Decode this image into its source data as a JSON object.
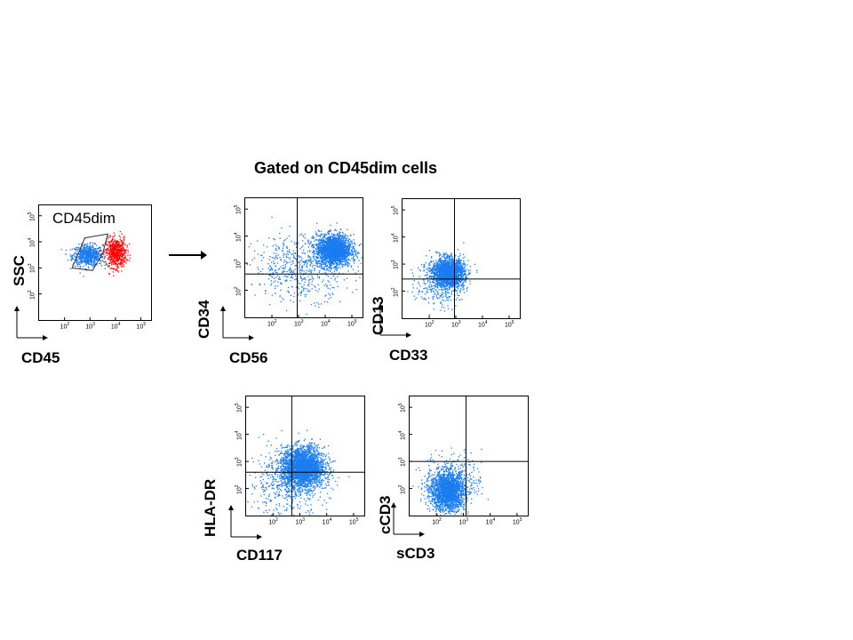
{
  "heading": "Gated on CD45dim cells",
  "colors": {
    "gated": "#1a7cf0",
    "other": "#ff0000",
    "lines": "#000000"
  },
  "chart_data": [
    {
      "type": "scatter",
      "id": "p1",
      "xlabel": "CD45",
      "ylabel": "SSC",
      "gate_label": "CD45dim",
      "xticks": [
        "10^2",
        "10^3",
        "10^4",
        "10^5"
      ],
      "yticks": [
        "10^2",
        "10^3",
        "10^4",
        "10^5"
      ],
      "xlim": [
        1,
        5.4
      ],
      "ylim": [
        1,
        5.4
      ],
      "log_scale": true,
      "clusters": [
        {
          "name": "CD45dim",
          "color": "blue",
          "x": 2.9,
          "y": 3.5,
          "sx": 0.3,
          "sy": 0.2,
          "n": 700
        },
        {
          "name": "",
          "color": "red",
          "x": 4.0,
          "y": 3.6,
          "sx": 0.2,
          "sy": 0.28,
          "n": 600
        }
      ],
      "gate_polygon": [
        [
          2.3,
          3.0
        ],
        [
          2.8,
          4.15
        ],
        [
          3.7,
          4.3
        ],
        [
          3.5,
          3.55
        ],
        [
          3.1,
          2.9
        ]
      ]
    },
    {
      "type": "scatter",
      "id": "p2",
      "xlabel": "CD56",
      "ylabel": "CD34",
      "xticks": [
        "10^2",
        "10^3",
        "10^4",
        "10^5"
      ],
      "yticks": [
        "10^2",
        "10^3",
        "10^4",
        "10^5"
      ],
      "xlim": [
        1,
        5.4
      ],
      "ylim": [
        1,
        5.4
      ],
      "log_scale": true,
      "quadrant": [
        2.95,
        2.6
      ],
      "clusters": [
        {
          "name": "",
          "color": "blue",
          "x": 4.3,
          "y": 3.5,
          "sx": 0.32,
          "sy": 0.28,
          "n": 2200
        },
        {
          "name": "",
          "color": "blue",
          "x": 3.1,
          "y": 2.9,
          "sx": 0.9,
          "sy": 0.6,
          "n": 600
        }
      ]
    },
    {
      "type": "scatter",
      "id": "p3",
      "xlabel": "CD33",
      "ylabel": "CD13",
      "xticks": [
        "10^2",
        "10^3",
        "10^4",
        "10^5"
      ],
      "yticks": [
        "10^2",
        "10^3",
        "10^4",
        "10^5"
      ],
      "xlim": [
        1,
        5.4
      ],
      "ylim": [
        1,
        5.4
      ],
      "log_scale": true,
      "quadrant": [
        2.95,
        2.45
      ],
      "clusters": [
        {
          "name": "",
          "color": "blue",
          "x": 2.7,
          "y": 2.7,
          "sx": 0.3,
          "sy": 0.26,
          "n": 2000
        },
        {
          "name": "",
          "color": "blue",
          "x": 2.4,
          "y": 2.3,
          "sx": 0.45,
          "sy": 0.45,
          "n": 300
        }
      ]
    },
    {
      "type": "scatter",
      "id": "p4",
      "xlabel": "CD117",
      "ylabel": "HLA-DR",
      "xticks": [
        "10^2",
        "10^3",
        "10^4",
        "10^5"
      ],
      "yticks": [
        "10^2",
        "10^3",
        "10^4",
        "10^5"
      ],
      "xlim": [
        1,
        5.4
      ],
      "ylim": [
        1,
        5.4
      ],
      "log_scale": true,
      "quadrant": [
        2.7,
        2.6
      ],
      "clusters": [
        {
          "name": "",
          "color": "blue",
          "x": 3.1,
          "y": 2.8,
          "sx": 0.4,
          "sy": 0.38,
          "n": 2600
        },
        {
          "name": "",
          "color": "blue",
          "x": 2.5,
          "y": 2.2,
          "sx": 0.7,
          "sy": 0.6,
          "n": 500
        }
      ]
    },
    {
      "type": "scatter",
      "id": "p5",
      "xlabel": "sCD3",
      "ylabel": "cCD3",
      "xticks": [
        "10^2",
        "10^3",
        "10^4",
        "10^5"
      ],
      "yticks": [
        "10^2",
        "10^3",
        "10^4",
        "10^5"
      ],
      "xlim": [
        1,
        5.4
      ],
      "ylim": [
        1,
        5.4
      ],
      "log_scale": true,
      "quadrant": [
        3.1,
        3.0
      ],
      "clusters": [
        {
          "name": "",
          "color": "blue",
          "x": 2.4,
          "y": 1.9,
          "sx": 0.32,
          "sy": 0.36,
          "n": 2000
        },
        {
          "name": "",
          "color": "blue",
          "x": 2.6,
          "y": 2.4,
          "sx": 0.55,
          "sy": 0.45,
          "n": 300
        }
      ]
    }
  ]
}
